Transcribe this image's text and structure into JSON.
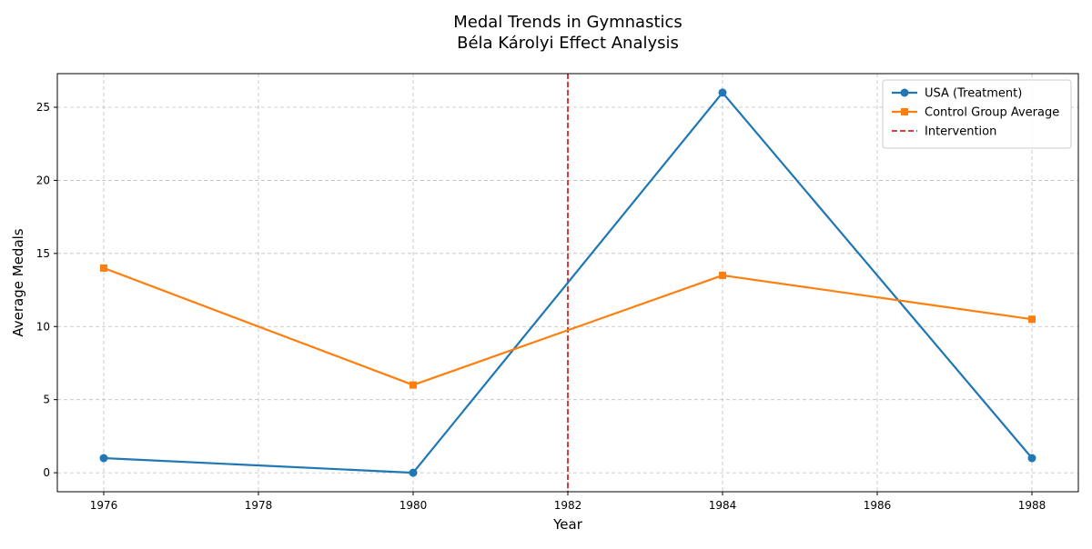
{
  "chart_data": {
    "type": "line",
    "title": "Medal Trends in Gymnastics",
    "subtitle": "Béla Károlyi Effect Analysis",
    "xlabel": "Year",
    "ylabel": "Average Medals",
    "x": [
      1976,
      1980,
      1984,
      1988
    ],
    "xlim": [
      1975.4,
      1988.6
    ],
    "ylim": [
      -1.3,
      27.3
    ],
    "xticks": [
      1976,
      1978,
      1980,
      1982,
      1984,
      1986,
      1988
    ],
    "yticks": [
      0,
      5,
      10,
      15,
      20,
      25
    ],
    "grid": true,
    "legend_position": "top-right",
    "series": [
      {
        "name": "USA (Treatment)",
        "values": [
          1,
          0,
          26,
          1
        ],
        "color": "#1f77b4",
        "marker": "circle"
      },
      {
        "name": "Control Group Average",
        "values": [
          14,
          6,
          13.5,
          10.5
        ],
        "color": "#ff7f0e",
        "marker": "square"
      }
    ],
    "vlines": [
      {
        "name": "Intervention",
        "x": 1982,
        "color": "#d62728",
        "style": "dashed"
      }
    ]
  }
}
